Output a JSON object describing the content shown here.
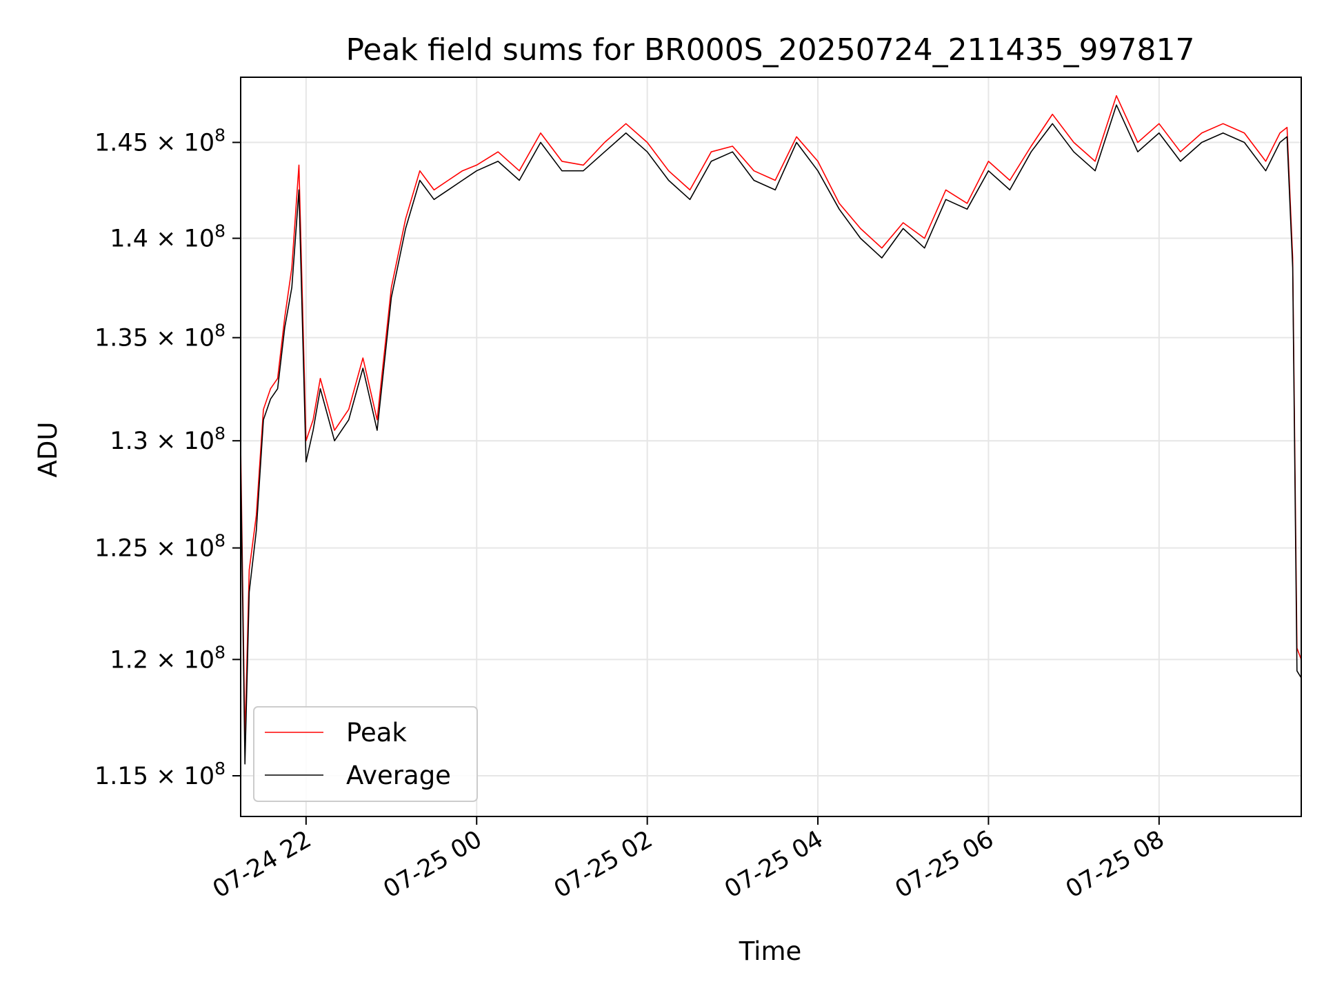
{
  "chart_data": {
    "type": "line",
    "title": "Peak field sums for BR000S_20250724_211435_997817",
    "xlabel": "Time",
    "ylabel": "ADU",
    "yscale": "log",
    "grid": true,
    "legend_position": "lower-left",
    "xlim": [
      "2025-07-24 21:14",
      "2025-07-25 09:40"
    ],
    "ylim": [
      113300000,
      148500000
    ],
    "x_ticks": [
      {
        "value": "2025-07-24 22:00",
        "label": "07-24 22"
      },
      {
        "value": "2025-07-25 00:00",
        "label": "07-25 00"
      },
      {
        "value": "2025-07-25 02:00",
        "label": "07-25 02"
      },
      {
        "value": "2025-07-25 04:00",
        "label": "07-25 04"
      },
      {
        "value": "2025-07-25 06:00",
        "label": "07-25 06"
      },
      {
        "value": "2025-07-25 08:00",
        "label": "07-25 08"
      }
    ],
    "y_ticks": [
      {
        "value": 115000000,
        "mantissa": "1.15",
        "exponent": "8"
      },
      {
        "value": 120000000,
        "mantissa": "1.2",
        "exponent": "8"
      },
      {
        "value": 125000000,
        "mantissa": "1.25",
        "exponent": "8"
      },
      {
        "value": 130000000,
        "mantissa": "1.3",
        "exponent": "8"
      },
      {
        "value": 135000000,
        "mantissa": "1.35",
        "exponent": "8"
      },
      {
        "value": 140000000,
        "mantissa": "1.4",
        "exponent": "8"
      },
      {
        "value": 145000000,
        "mantissa": "1.45",
        "exponent": "8"
      }
    ],
    "x": [
      "2025-07-24 21:14",
      "2025-07-24 21:17",
      "2025-07-24 21:20",
      "2025-07-24 21:25",
      "2025-07-24 21:30",
      "2025-07-24 21:35",
      "2025-07-24 21:40",
      "2025-07-24 21:45",
      "2025-07-24 21:50",
      "2025-07-24 21:55",
      "2025-07-24 22:00",
      "2025-07-24 22:05",
      "2025-07-24 22:10",
      "2025-07-24 22:20",
      "2025-07-24 22:30",
      "2025-07-24 22:40",
      "2025-07-24 22:50",
      "2025-07-24 23:00",
      "2025-07-24 23:10",
      "2025-07-24 23:20",
      "2025-07-24 23:30",
      "2025-07-24 23:40",
      "2025-07-24 23:50",
      "2025-07-25 00:00",
      "2025-07-25 00:15",
      "2025-07-25 00:30",
      "2025-07-25 00:45",
      "2025-07-25 01:00",
      "2025-07-25 01:15",
      "2025-07-25 01:30",
      "2025-07-25 01:45",
      "2025-07-25 02:00",
      "2025-07-25 02:15",
      "2025-07-25 02:30",
      "2025-07-25 02:45",
      "2025-07-25 03:00",
      "2025-07-25 03:15",
      "2025-07-25 03:30",
      "2025-07-25 03:45",
      "2025-07-25 04:00",
      "2025-07-25 04:15",
      "2025-07-25 04:30",
      "2025-07-25 04:45",
      "2025-07-25 05:00",
      "2025-07-25 05:15",
      "2025-07-25 05:30",
      "2025-07-25 05:45",
      "2025-07-25 06:00",
      "2025-07-25 06:15",
      "2025-07-25 06:30",
      "2025-07-25 06:45",
      "2025-07-25 07:00",
      "2025-07-25 07:15",
      "2025-07-25 07:30",
      "2025-07-25 07:45",
      "2025-07-25 08:00",
      "2025-07-25 08:15",
      "2025-07-25 08:30",
      "2025-07-25 08:45",
      "2025-07-25 09:00",
      "2025-07-25 09:15",
      "2025-07-25 09:25",
      "2025-07-25 09:30",
      "2025-07-25 09:34",
      "2025-07-25 09:37",
      "2025-07-25 09:40"
    ],
    "series": [
      {
        "name": "Peak",
        "color": "#ff0000",
        "values": [
          129800000,
          116500000,
          124000000,
          126500000,
          131500000,
          132500000,
          133000000,
          136000000,
          138500000,
          143800000,
          130000000,
          131000000,
          133000000,
          130500000,
          131500000,
          134000000,
          131000000,
          137500000,
          141000000,
          143500000,
          142500000,
          143000000,
          143500000,
          143800000,
          144500000,
          143500000,
          145500000,
          144000000,
          143800000,
          145000000,
          146000000,
          145000000,
          143500000,
          142500000,
          144500000,
          144800000,
          143500000,
          143000000,
          145300000,
          144000000,
          141800000,
          140500000,
          139500000,
          140800000,
          140000000,
          142500000,
          141800000,
          144000000,
          143000000,
          144800000,
          146500000,
          145000000,
          144000000,
          147500000,
          145000000,
          146000000,
          144500000,
          145500000,
          146000000,
          145500000,
          144000000,
          145500000,
          145800000,
          139000000,
          120500000,
          120000000
        ]
      },
      {
        "name": "Average",
        "color": "#000000",
        "values": [
          129000000,
          115500000,
          123000000,
          125800000,
          131000000,
          132000000,
          132500000,
          135500000,
          137500000,
          142500000,
          129000000,
          130500000,
          132500000,
          130000000,
          131000000,
          133500000,
          130500000,
          137000000,
          140500000,
          143000000,
          142000000,
          142500000,
          143000000,
          143500000,
          144000000,
          143000000,
          145000000,
          143500000,
          143500000,
          144500000,
          145500000,
          144500000,
          143000000,
          142000000,
          144000000,
          144500000,
          143000000,
          142500000,
          145000000,
          143500000,
          141500000,
          140000000,
          139000000,
          140500000,
          139500000,
          142000000,
          141500000,
          143500000,
          142500000,
          144500000,
          146000000,
          144500000,
          143500000,
          147000000,
          144500000,
          145500000,
          144000000,
          145000000,
          145500000,
          145000000,
          143500000,
          145000000,
          145300000,
          138500000,
          119500000,
          119200000
        ]
      }
    ]
  }
}
